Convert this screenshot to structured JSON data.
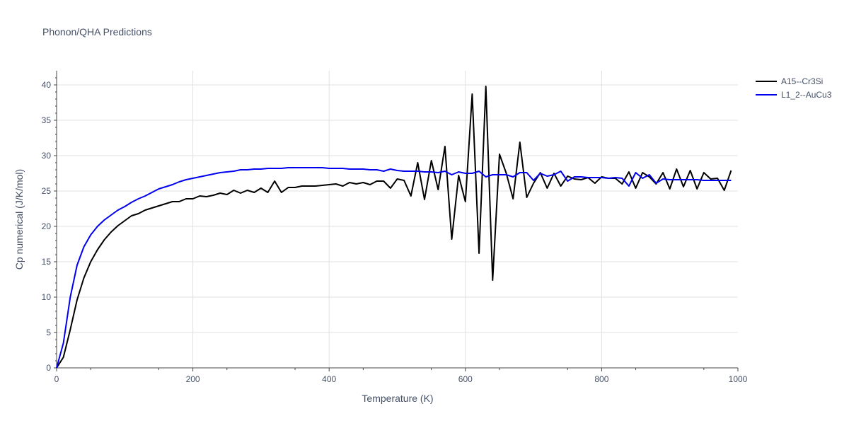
{
  "chart_data": {
    "type": "line",
    "title": "Phonon/QHA Predictions",
    "xlabel": "Temperature (K)",
    "ylabel": "Cp numerical (J/K/mol)",
    "xlim": [
      0,
      1000
    ],
    "ylim": [
      0,
      42
    ],
    "xticks": [
      0,
      200,
      400,
      600,
      800,
      1000
    ],
    "yticks": [
      0,
      5,
      10,
      15,
      20,
      25,
      30,
      35,
      40
    ],
    "grid": true,
    "legend": "top-right",
    "series": [
      {
        "name": "A15--Cr3Si",
        "color": "#000000",
        "x": [
          0,
          10,
          20,
          30,
          40,
          50,
          60,
          70,
          80,
          90,
          100,
          110,
          120,
          130,
          140,
          150,
          160,
          170,
          180,
          190,
          200,
          210,
          220,
          230,
          240,
          250,
          260,
          270,
          280,
          290,
          300,
          310,
          320,
          330,
          340,
          350,
          360,
          370,
          380,
          390,
          400,
          410,
          420,
          430,
          440,
          450,
          460,
          470,
          480,
          490,
          500,
          510,
          520,
          530,
          540,
          550,
          560,
          570,
          580,
          590,
          600,
          610,
          620,
          630,
          640,
          650,
          660,
          670,
          680,
          690,
          700,
          710,
          720,
          730,
          740,
          750,
          760,
          770,
          780,
          790,
          800,
          810,
          820,
          830,
          840,
          850,
          860,
          870,
          880,
          890,
          900,
          910,
          920,
          930,
          940,
          950,
          960,
          970,
          980,
          990
        ],
        "y": [
          0,
          1.5,
          5.4,
          9.6,
          12.7,
          15.0,
          16.7,
          18.1,
          19.2,
          20.1,
          20.8,
          21.5,
          21.8,
          22.3,
          22.6,
          22.9,
          23.2,
          23.5,
          23.5,
          23.9,
          23.9,
          24.3,
          24.2,
          24.4,
          24.7,
          24.5,
          25.1,
          24.7,
          25.1,
          24.8,
          25.4,
          24.8,
          26.4,
          24.8,
          25.5,
          25.5,
          25.7,
          25.7,
          25.7,
          25.8,
          25.9,
          26.0,
          25.7,
          26.2,
          26.0,
          26.2,
          25.9,
          26.4,
          26.4,
          25.4,
          26.7,
          26.5,
          24.3,
          29.0,
          23.8,
          29.3,
          25.2,
          31.3,
          18.2,
          27.2,
          23.5,
          38.7,
          16.2,
          39.8,
          12.4,
          30.2,
          27.5,
          23.9,
          31.9,
          24.1,
          26.1,
          27.6,
          25.4,
          27.5,
          25.7,
          27.1,
          26.7,
          26.6,
          26.9,
          26.1,
          27.0,
          26.8,
          26.8,
          26.0,
          27.7,
          25.4,
          27.6,
          27.0,
          26.0,
          27.6,
          25.3,
          28.1,
          25.6,
          27.9,
          25.3,
          27.6,
          26.7,
          26.8,
          25.1,
          27.9
        ]
      },
      {
        "name": "L1_2--AuCu3",
        "color": "#0000ee",
        "x": [
          0,
          10,
          20,
          30,
          40,
          50,
          60,
          70,
          80,
          90,
          100,
          110,
          120,
          130,
          140,
          150,
          160,
          170,
          180,
          190,
          200,
          210,
          220,
          230,
          240,
          250,
          260,
          270,
          280,
          290,
          300,
          310,
          320,
          330,
          340,
          350,
          360,
          370,
          380,
          390,
          400,
          410,
          420,
          430,
          440,
          450,
          460,
          470,
          480,
          490,
          500,
          510,
          520,
          530,
          540,
          550,
          560,
          570,
          580,
          590,
          600,
          610,
          620,
          630,
          640,
          650,
          660,
          670,
          680,
          690,
          700,
          710,
          720,
          730,
          740,
          750,
          760,
          770,
          780,
          790,
          800,
          810,
          820,
          830,
          840,
          850,
          860,
          870,
          880,
          890,
          900,
          910,
          920,
          930,
          940,
          950,
          960,
          970,
          980,
          990
        ],
        "y": [
          0,
          3.5,
          10.0,
          14.5,
          17.1,
          18.8,
          20.0,
          20.9,
          21.6,
          22.3,
          22.8,
          23.4,
          23.9,
          24.3,
          24.8,
          25.3,
          25.6,
          25.9,
          26.3,
          26.6,
          26.8,
          27.0,
          27.2,
          27.4,
          27.6,
          27.7,
          27.8,
          28.0,
          28.0,
          28.1,
          28.1,
          28.2,
          28.2,
          28.2,
          28.3,
          28.3,
          28.3,
          28.3,
          28.3,
          28.3,
          28.2,
          28.2,
          28.2,
          28.1,
          28.1,
          28.1,
          28.0,
          28.0,
          27.8,
          28.1,
          27.9,
          27.8,
          27.8,
          27.8,
          27.7,
          27.7,
          27.6,
          27.8,
          27.3,
          27.7,
          27.5,
          27.5,
          27.8,
          27.0,
          27.3,
          27.3,
          27.3,
          27.0,
          27.6,
          27.6,
          26.5,
          27.5,
          27.1,
          27.3,
          27.8,
          26.4,
          27.0,
          27.0,
          26.9,
          26.9,
          26.9,
          26.8,
          26.9,
          26.8,
          25.7,
          27.6,
          26.8,
          27.3,
          26.1,
          26.7,
          26.6,
          26.6,
          26.6,
          26.6,
          26.6,
          26.5,
          26.5,
          26.5,
          26.5,
          26.5
        ]
      }
    ]
  }
}
